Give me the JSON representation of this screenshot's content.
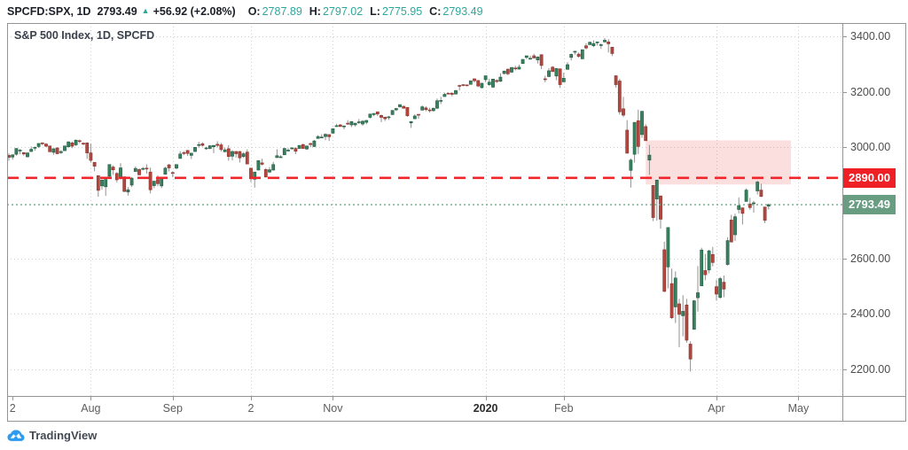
{
  "header": {
    "symbol": "SPCFD:SPX, 1D",
    "last": "2793.49",
    "arrow": "▲",
    "change": "+56.92 (+2.08%)",
    "o_label": "O:",
    "o": "2787.89",
    "h_label": "H:",
    "h": "2797.02",
    "l_label": "L:",
    "l": "2775.95",
    "c_label": "C:",
    "c": "2793.49"
  },
  "legend": "S&P 500 Index, 1D, SPCFD",
  "footer": {
    "logo_text": "TradingView"
  },
  "colors": {
    "up_fill": "#3a8060",
    "up_stroke": "#215c40",
    "down_fill": "#b1473f",
    "down_stroke": "#8d352e",
    "wick": "#90908f",
    "grid": "#cfcfcf",
    "frame": "#949494",
    "teal": "#2ca89b",
    "alert_line_red": "#f1262b",
    "badge_red": "#ee2026",
    "badge_green": "#689d82",
    "last_price_line_green": "#6fa98a",
    "zone_fill": "rgba(235,80,80,0.18)"
  },
  "chart_data": {
    "type": "candlestick",
    "title": "S&P 500 Index, 1D, SPCFD",
    "interval": "1D",
    "period_shown": "Jul 2019 - Apr 2020",
    "grid": true,
    "y_ticks": [
      "3400.00",
      "3200.00",
      "3000.00",
      "2600.00",
      "2400.00",
      "2200.00"
    ],
    "y_tick_values": [
      3400,
      3200,
      3000,
      2600,
      2400,
      2200
    ],
    "y_range": [
      2104,
      3448
    ],
    "x_ticks": [
      {
        "label": "2",
        "i": 1
      },
      {
        "label": "Aug",
        "i": 22
      },
      {
        "label": "Sep",
        "i": 44
      },
      {
        "label": "2",
        "i": 65
      },
      {
        "label": "Nov",
        "i": 87
      },
      {
        "label": "2020",
        "i": 128,
        "bold": true
      },
      {
        "label": "Feb",
        "i": 149
      },
      {
        "label": "Apr",
        "i": 190
      },
      {
        "label": "May",
        "i": 212
      }
    ],
    "price_line": {
      "value": 2890,
      "label": "2890.00"
    },
    "last_price": {
      "value": 2793.49,
      "label": "2793.49"
    },
    "zone": {
      "start_index": 171,
      "end_index": 210,
      "price_top": 3025,
      "price_bottom": 2866
    },
    "candles": [
      [
        2971,
        2978,
        2952,
        2964
      ],
      [
        2965,
        2975,
        2956,
        2973
      ],
      [
        2975,
        2996,
        2970,
        2996
      ],
      [
        2990,
        2994,
        2975,
        2990
      ],
      [
        2981,
        2982,
        2970,
        2976
      ],
      [
        2966,
        2981,
        2963,
        2980
      ],
      [
        2985,
        3003,
        2984,
        2993
      ],
      [
        2997,
        3003,
        2988,
        3000
      ],
      [
        3003,
        3014,
        2998,
        3014
      ],
      [
        3016,
        3018,
        3008,
        3014
      ],
      [
        3012,
        3015,
        3001,
        3004
      ],
      [
        3005,
        3006,
        2984,
        2984
      ],
      [
        2982,
        2996,
        2973,
        2995
      ],
      [
        2998,
        3000,
        2976,
        2977
      ],
      [
        2981,
        2990,
        2976,
        2985
      ],
      [
        2988,
        3006,
        2988,
        3005
      ],
      [
        3002,
        3020,
        2999,
        3020
      ],
      [
        3016,
        3021,
        2997,
        3004
      ],
      [
        3009,
        3028,
        3005,
        3026
      ],
      [
        3024,
        3028,
        3015,
        3021
      ],
      [
        3015,
        3018,
        3007,
        3013
      ],
      [
        3016,
        3018,
        2958,
        2980
      ],
      [
        2980,
        3013,
        2945,
        2953
      ],
      [
        2946,
        2946,
        2914,
        2932
      ],
      [
        2898,
        2898,
        2822,
        2845
      ],
      [
        2861,
        2884,
        2847,
        2882
      ],
      [
        2858,
        2892,
        2825,
        2884
      ],
      [
        2896,
        2939,
        2894,
        2938
      ],
      [
        2929,
        2935,
        2901,
        2919
      ],
      [
        2906,
        2911,
        2874,
        2883
      ],
      [
        2889,
        2943,
        2884,
        2926
      ],
      [
        2894,
        2894,
        2839,
        2841
      ],
      [
        2839,
        2857,
        2826,
        2847
      ],
      [
        2864,
        2893,
        2857,
        2889
      ],
      [
        2913,
        2931,
        2913,
        2924
      ],
      [
        2920,
        2924,
        2899,
        2901
      ],
      [
        2922,
        2929,
        2917,
        2924
      ],
      [
        2925,
        2939,
        2905,
        2923
      ],
      [
        2911,
        2927,
        2834,
        2847
      ],
      [
        2862,
        2879,
        2853,
        2878
      ],
      [
        2884,
        2899,
        2860,
        2869
      ],
      [
        2861,
        2890,
        2853,
        2888
      ],
      [
        2903,
        2930,
        2903,
        2925
      ],
      [
        2937,
        2940,
        2913,
        2926
      ],
      [
        2909,
        2914,
        2892,
        2906
      ],
      [
        2925,
        2938,
        2921,
        2938
      ],
      [
        2960,
        2986,
        2960,
        2976
      ],
      [
        2981,
        2986,
        2972,
        2979
      ],
      [
        2989,
        2989,
        2969,
        2978
      ],
      [
        2971,
        2980,
        2958,
        2979
      ],
      [
        2985,
        3000,
        2983,
        3000
      ],
      [
        3009,
        3020,
        2999,
        3010
      ],
      [
        3013,
        3018,
        3003,
        3007
      ],
      [
        2997,
        3002,
        2991,
        2998
      ],
      [
        2996,
        3006,
        2993,
        3006
      ],
      [
        3002,
        3008,
        2979,
        3007
      ],
      [
        3011,
        3022,
        3000,
        3007
      ],
      [
        3009,
        3016,
        2985,
        2992
      ],
      [
        2984,
        2999,
        2983,
        2991
      ],
      [
        2995,
        3008,
        2952,
        2967
      ],
      [
        2968,
        2989,
        2953,
        2985
      ],
      [
        2985,
        2987,
        2963,
        2977
      ],
      [
        2985,
        2987,
        2945,
        2962
      ],
      [
        2967,
        2983,
        2962,
        2977
      ],
      [
        2983,
        2993,
        2939,
        2940
      ],
      [
        2925,
        2925,
        2875,
        2888
      ],
      [
        2885,
        2911,
        2855,
        2911
      ],
      [
        2918,
        2953,
        2918,
        2952
      ],
      [
        2944,
        2959,
        2935,
        2939
      ],
      [
        2920,
        2925,
        2892,
        2893
      ],
      [
        2911,
        2929,
        2907,
        2919
      ],
      [
        2918,
        2948,
        2917,
        2938
      ],
      [
        2963,
        2993,
        2963,
        2970
      ],
      [
        2965,
        2972,
        2962,
        2966
      ],
      [
        2973,
        2998,
        2973,
        2996
      ],
      [
        2989,
        2997,
        2985,
        2990
      ],
      [
        2995,
        3000,
        2991,
        2998
      ],
      [
        2996,
        3000,
        2976,
        2986
      ],
      [
        2996,
        3007,
        2995,
        3007
      ],
      [
        3010,
        3014,
        2995,
        2996
      ],
      [
        2994,
        3005,
        2991,
        3005
      ],
      [
        3014,
        3016,
        3001,
        3010
      ],
      [
        3003,
        3027,
        3001,
        3023
      ],
      [
        3032,
        3044,
        3032,
        3039
      ],
      [
        3035,
        3047,
        3034,
        3037
      ],
      [
        3039,
        3050,
        3026,
        3047
      ],
      [
        3046,
        3046,
        3023,
        3038
      ],
      [
        3051,
        3067,
        3050,
        3067
      ],
      [
        3078,
        3085,
        3074,
        3078
      ],
      [
        3081,
        3084,
        3074,
        3075
      ],
      [
        3075,
        3079,
        3065,
        3077
      ],
      [
        3087,
        3098,
        3081,
        3085
      ],
      [
        3081,
        3093,
        3073,
        3093
      ],
      [
        3081,
        3088,
        3075,
        3087
      ],
      [
        3090,
        3102,
        3084,
        3092
      ],
      [
        3084,
        3098,
        3078,
        3094
      ],
      [
        3090,
        3098,
        3083,
        3097
      ],
      [
        3108,
        3120,
        3104,
        3120
      ],
      [
        3118,
        3124,
        3112,
        3122
      ],
      [
        3128,
        3128,
        3113,
        3120
      ],
      [
        3115,
        3118,
        3091,
        3108
      ],
      [
        3109,
        3110,
        3095,
        3103
      ],
      [
        3107,
        3113,
        3099,
        3110
      ],
      [
        3118,
        3133,
        3117,
        3133
      ],
      [
        3135,
        3142,
        3131,
        3140
      ],
      [
        3146,
        3154,
        3143,
        3154
      ],
      [
        3148,
        3150,
        3139,
        3141
      ],
      [
        3144,
        3144,
        3110,
        3114
      ],
      [
        3088,
        3094,
        3070,
        3093
      ],
      [
        3103,
        3119,
        3102,
        3113
      ],
      [
        3119,
        3119,
        3103,
        3117
      ],
      [
        3134,
        3151,
        3134,
        3146
      ],
      [
        3142,
        3148,
        3130,
        3136
      ],
      [
        3135,
        3143,
        3126,
        3132
      ],
      [
        3132,
        3143,
        3129,
        3141
      ],
      [
        3141,
        3176,
        3138,
        3168
      ],
      [
        3166,
        3182,
        3156,
        3169
      ],
      [
        3183,
        3197,
        3183,
        3191
      ],
      [
        3195,
        3198,
        3191,
        3192
      ],
      [
        3195,
        3198,
        3184,
        3191
      ],
      [
        3192,
        3205,
        3192,
        3205
      ],
      [
        3223,
        3226,
        3205,
        3221
      ],
      [
        3226,
        3227,
        3220,
        3224
      ],
      [
        3225,
        3226,
        3220,
        3223
      ],
      [
        3227,
        3240,
        3227,
        3240
      ],
      [
        3247,
        3248,
        3234,
        3240
      ],
      [
        3241,
        3241,
        3217,
        3221
      ],
      [
        3215,
        3232,
        3212,
        3231
      ],
      [
        3244,
        3258,
        3235,
        3258
      ],
      [
        3226,
        3247,
        3222,
        3235
      ],
      [
        3217,
        3246,
        3214,
        3246
      ],
      [
        3241,
        3245,
        3232,
        3237
      ],
      [
        3238,
        3267,
        3236,
        3253
      ],
      [
        3266,
        3275,
        3263,
        3275
      ],
      [
        3282,
        3283,
        3260,
        3265
      ],
      [
        3271,
        3288,
        3268,
        3288
      ],
      [
        3286,
        3294,
        3277,
        3283
      ],
      [
        3282,
        3298,
        3280,
        3289
      ],
      [
        3302,
        3317,
        3302,
        3317
      ],
      [
        3324,
        3330,
        3318,
        3330
      ],
      [
        3321,
        3330,
        3316,
        3321
      ],
      [
        3330,
        3337,
        3320,
        3322
      ],
      [
        3315,
        3327,
        3302,
        3326
      ],
      [
        3334,
        3334,
        3282,
        3295
      ],
      [
        3247,
        3258,
        3235,
        3244
      ],
      [
        3255,
        3286,
        3254,
        3276
      ],
      [
        3289,
        3293,
        3272,
        3273
      ],
      [
        3257,
        3286,
        3242,
        3284
      ],
      [
        3283,
        3283,
        3214,
        3226
      ],
      [
        3236,
        3269,
        3235,
        3249
      ],
      [
        3281,
        3307,
        3281,
        3298
      ],
      [
        3324,
        3338,
        3313,
        3335
      ],
      [
        3345,
        3348,
        3334,
        3346
      ],
      [
        3336,
        3342,
        3323,
        3328
      ],
      [
        3319,
        3352,
        3318,
        3352
      ],
      [
        3366,
        3375,
        3353,
        3358
      ],
      [
        3370,
        3381,
        3370,
        3379
      ],
      [
        3366,
        3386,
        3361,
        3374
      ],
      [
        3378,
        3381,
        3367,
        3380
      ],
      [
        3369,
        3375,
        3355,
        3370
      ],
      [
        3380,
        3394,
        3378,
        3386
      ],
      [
        3380,
        3390,
        3342,
        3373
      ],
      [
        3361,
        3361,
        3329,
        3338
      ],
      [
        3258,
        3260,
        3215,
        3226
      ],
      [
        3239,
        3247,
        3118,
        3128
      ],
      [
        3139,
        3182,
        3109,
        3116
      ],
      [
        3062,
        3098,
        2977,
        2979
      ],
      [
        2917,
        2960,
        2855,
        2954
      ],
      [
        2975,
        3090,
        2945,
        3090
      ],
      [
        3096,
        3136,
        2976,
        3003
      ],
      [
        3046,
        3130,
        3034,
        3130
      ],
      [
        3075,
        3083,
        3024,
        3024
      ],
      [
        2954,
        3009,
        2901,
        2972
      ],
      [
        2863,
        2863,
        2734,
        2747
      ],
      [
        2814,
        2882,
        2736,
        2882
      ],
      [
        2825,
        2825,
        2707,
        2741
      ],
      [
        2631,
        2660,
        2478,
        2481
      ],
      [
        2569,
        2711,
        2492,
        2711
      ],
      [
        2509,
        2563,
        2381,
        2386
      ],
      [
        2425,
        2553,
        2367,
        2529
      ],
      [
        2436,
        2454,
        2280,
        2398
      ],
      [
        2393,
        2467,
        2319,
        2409
      ],
      [
        2432,
        2454,
        2296,
        2305
      ],
      [
        2291,
        2301,
        2192,
        2237
      ],
      [
        2344,
        2450,
        2344,
        2447
      ],
      [
        2458,
        2572,
        2408,
        2476
      ],
      [
        2501,
        2638,
        2501,
        2630
      ],
      [
        2556,
        2616,
        2521,
        2541
      ],
      [
        2558,
        2631,
        2546,
        2627
      ],
      [
        2614,
        2641,
        2571,
        2585
      ],
      [
        2498,
        2523,
        2448,
        2471
      ],
      [
        2459,
        2533,
        2455,
        2527
      ],
      [
        2514,
        2538,
        2460,
        2489
      ],
      [
        2578,
        2676,
        2574,
        2664
      ],
      [
        2738,
        2757,
        2657,
        2659
      ],
      [
        2685,
        2761,
        2663,
        2750
      ],
      [
        2776,
        2819,
        2762,
        2790
      ],
      [
        2782,
        2782,
        2722,
        2762
      ],
      [
        2805,
        2852,
        2805,
        2846
      ],
      [
        2796,
        2818,
        2775,
        2783
      ],
      [
        2799,
        2807,
        2765,
        2800
      ],
      [
        2843,
        2880,
        2830,
        2875
      ],
      [
        2846,
        2869,
        2821,
        2823
      ],
      [
        2785,
        2785,
        2727,
        2737
      ],
      [
        2787.89,
        2797.02,
        2775.95,
        2793.49
      ]
    ]
  }
}
